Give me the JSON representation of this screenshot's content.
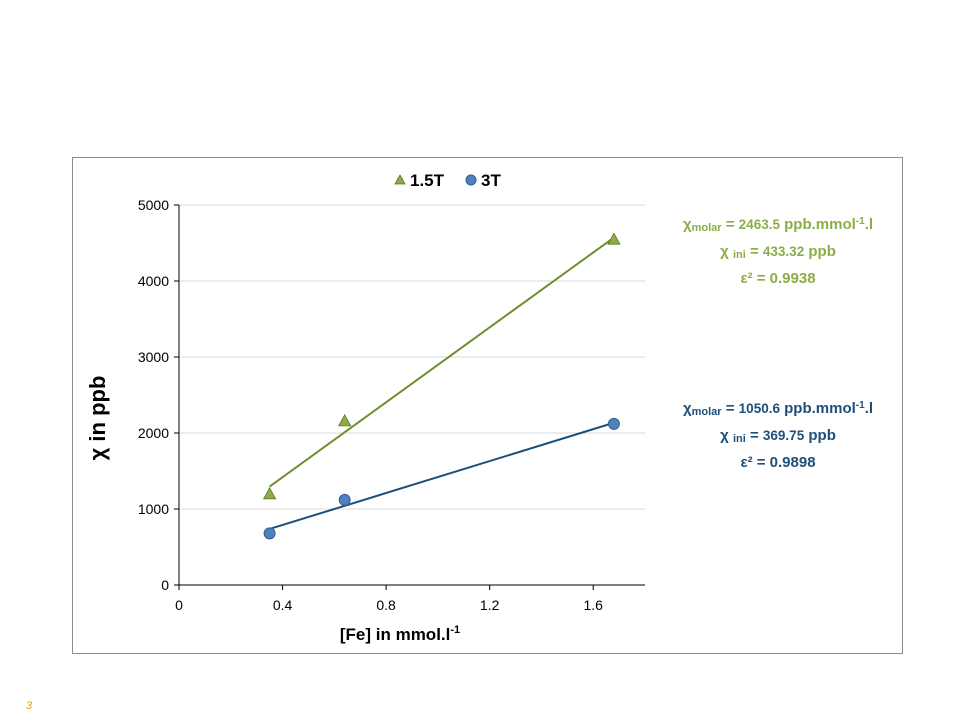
{
  "page": {
    "number": "3"
  },
  "chart_data": {
    "type": "scatter",
    "xlabel": "[Fe] in mmol.l",
    "xlabel_sup": "-1",
    "ylabel": "χ in ppb",
    "xlim": [
      0,
      1.8
    ],
    "ylim": [
      0,
      5000
    ],
    "x_ticks": [
      "0",
      "0.4",
      "0.8",
      "1.2",
      "1.6"
    ],
    "x_tick_values": [
      0,
      0.4,
      0.8,
      1.2,
      1.6
    ],
    "y_ticks": [
      "0",
      "1000",
      "2000",
      "3000",
      "4000",
      "5000"
    ],
    "y_tick_values": [
      0,
      1000,
      2000,
      3000,
      4000,
      5000
    ],
    "grid": "horizontal",
    "legend_position": "top-center",
    "series": [
      {
        "name": "1.5T",
        "marker": "triangle",
        "color": "#8cad46",
        "line_color": "#6e8f31",
        "x": [
          0.35,
          0.64,
          1.68
        ],
        "y": [
          1200,
          2160,
          4550
        ],
        "fit": {
          "slope": 2463.5,
          "intercept": 433.32
        }
      },
      {
        "name": "3T",
        "marker": "circle",
        "color": "#4f81bd",
        "line_color": "#1f4e79",
        "x": [
          0.35,
          0.64,
          1.68
        ],
        "y": [
          680,
          1120,
          2120
        ],
        "fit": {
          "slope": 1050.6,
          "intercept": 369.75
        }
      }
    ],
    "annotations": [
      {
        "chi": "χ",
        "sub": "molar",
        "eq": " = ",
        "num": "2463.5",
        "unit": " ppb.mmol",
        "sup": "-1",
        "tail": ".l",
        "line2_chi": "χ ",
        "line2_sub": "ini",
        "line2_eq": " = ",
        "line2_num": "433.32",
        "line2_unit": " ppb",
        "line3": "ε² = 0.9938"
      },
      {
        "chi": "χ",
        "sub": "molar",
        "eq": " = ",
        "num": "1050.6",
        "unit": " ppb.mmol",
        "sup": "-1",
        "tail": ".l",
        "line2_chi": "χ ",
        "line2_sub": "ini",
        "line2_eq": " = ",
        "line2_num": "369.75",
        "line2_unit": " ppb",
        "line3": "ε² = 0.9898"
      }
    ]
  }
}
